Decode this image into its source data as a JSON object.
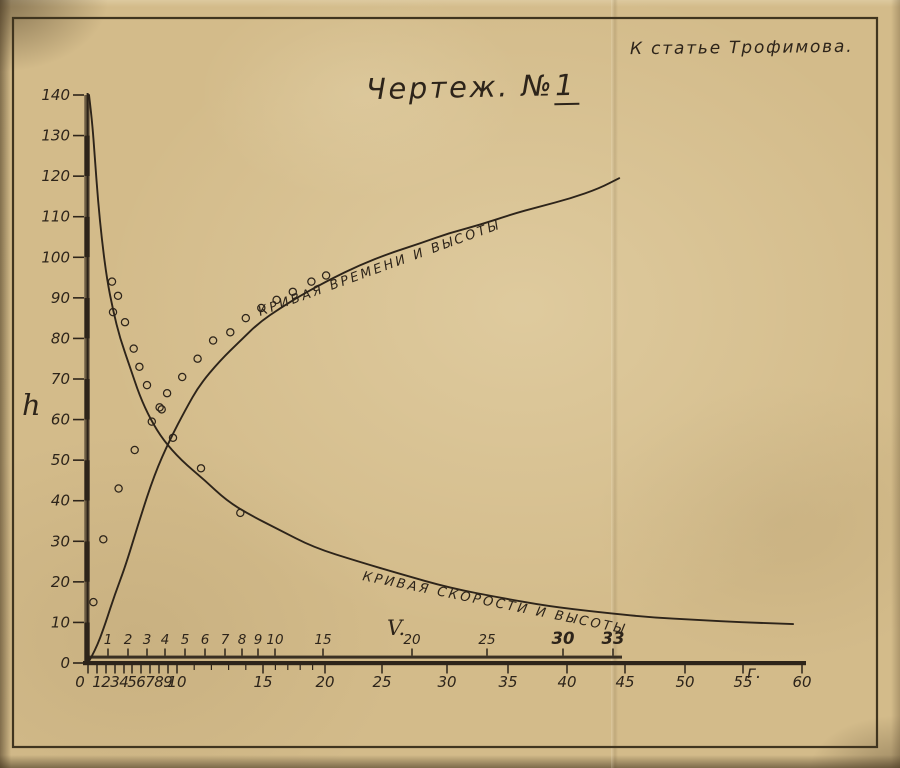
{
  "page": {
    "annotation": "К статье Трофимова.",
    "title_prefix": "Чертеж. №",
    "title_number": "1"
  },
  "chart_data": {
    "type": "line",
    "title": "Чертеж. №1",
    "note": "К статье Трофимова.",
    "ylabel": "h",
    "ylim": [
      0,
      140
    ],
    "y_ticks": [
      0,
      10,
      20,
      30,
      40,
      50,
      60,
      70,
      80,
      90,
      100,
      110,
      120,
      130,
      140
    ],
    "grid": false,
    "legend_position": "labels-along-curves",
    "ink_color": "#2d241a",
    "paper_color": "#d3bb8a",
    "x_bottom": {
      "label": "г.",
      "range": [
        0,
        60
      ],
      "ticks": [
        0,
        1,
        2,
        3,
        4,
        5,
        6,
        7,
        8,
        9,
        10,
        15,
        20,
        25,
        30,
        35,
        40,
        45,
        50,
        55,
        60
      ],
      "minor_ticks": [
        11,
        12,
        13,
        14,
        16,
        17,
        18,
        19
      ]
    },
    "x_top": {
      "label": "V.",
      "range": [
        0,
        33
      ],
      "ticks": [
        1,
        2,
        3,
        4,
        5,
        6,
        7,
        8,
        9,
        10,
        15,
        20,
        25,
        30,
        33
      ],
      "emphasized": [
        30,
        33
      ]
    },
    "series": [
      {
        "name": "Кривая времени и высоты",
        "x_axis": "bottom",
        "marker": "open-circle",
        "points": [
          [
            0,
            0
          ],
          [
            0.8,
            3
          ],
          [
            1.9,
            9.5
          ],
          [
            3,
            17
          ],
          [
            4.2,
            24
          ],
          [
            5.8,
            35
          ],
          [
            7.5,
            46.5
          ],
          [
            9.2,
            55
          ],
          [
            10.5,
            62.5
          ],
          [
            11.3,
            68.5
          ],
          [
            12.5,
            74.5
          ],
          [
            13.7,
            79.5
          ],
          [
            14.8,
            84
          ],
          [
            16.4,
            87.5
          ],
          [
            18,
            90.5
          ],
          [
            20.4,
            94.5
          ],
          [
            23,
            98
          ],
          [
            25.6,
            101
          ],
          [
            28,
            103.5
          ],
          [
            30.2,
            106
          ],
          [
            32.7,
            108
          ],
          [
            35.2,
            110.5
          ],
          [
            37.7,
            112.5
          ],
          [
            40.3,
            114.5
          ],
          [
            42.8,
            117
          ],
          [
            44.5,
            119.5
          ]
        ],
        "markers": [
          [
            0.6,
            15
          ],
          [
            1.7,
            30.5
          ],
          [
            3.4,
            43
          ],
          [
            5.3,
            52.5
          ],
          [
            7.2,
            59.5
          ],
          [
            8.3,
            62.5
          ],
          [
            8.9,
            66.5
          ],
          [
            10.3,
            70.5
          ],
          [
            11.2,
            75
          ],
          [
            12.1,
            79.5
          ],
          [
            13.1,
            81.5
          ],
          [
            14,
            85
          ],
          [
            14.9,
            87.5
          ],
          [
            16.1,
            89.5
          ],
          [
            17.4,
            91.5
          ],
          [
            18.9,
            94
          ],
          [
            20.1,
            95.5
          ]
        ]
      },
      {
        "name": "Кривая скорости и высоты",
        "x_axis": "top",
        "marker": "open-circle",
        "points": [
          [
            0.05,
            140
          ],
          [
            0.2,
            134
          ],
          [
            0.35,
            124
          ],
          [
            0.5,
            114
          ],
          [
            0.7,
            104
          ],
          [
            0.95,
            94.5
          ],
          [
            1.25,
            87
          ],
          [
            1.6,
            80
          ],
          [
            2.1,
            73
          ],
          [
            2.6,
            66
          ],
          [
            3.2,
            60
          ],
          [
            3.9,
            55
          ],
          [
            4.8,
            50
          ],
          [
            6,
            45
          ],
          [
            7.1,
            40
          ],
          [
            8.5,
            36.5
          ],
          [
            10.3,
            33
          ],
          [
            14,
            28.5
          ],
          [
            17,
            25
          ],
          [
            19.3,
            22
          ],
          [
            22.5,
            18.5
          ],
          [
            26,
            16
          ],
          [
            29,
            14
          ],
          [
            32.2,
            12.5
          ],
          [
            35.2,
            11.3
          ],
          [
            38.2,
            10.6
          ],
          [
            41.2,
            10
          ],
          [
            44.2,
            9.6
          ]
        ],
        "markers": [
          [
            1.2,
            94
          ],
          [
            1.5,
            90.5
          ],
          [
            1.25,
            86.5
          ],
          [
            1.85,
            84
          ],
          [
            2.3,
            77.5
          ],
          [
            2.6,
            73
          ],
          [
            3,
            68.5
          ],
          [
            3.7,
            63
          ],
          [
            4.4,
            55.5
          ],
          [
            5.8,
            48
          ],
          [
            7.9,
            37
          ]
        ]
      }
    ]
  }
}
